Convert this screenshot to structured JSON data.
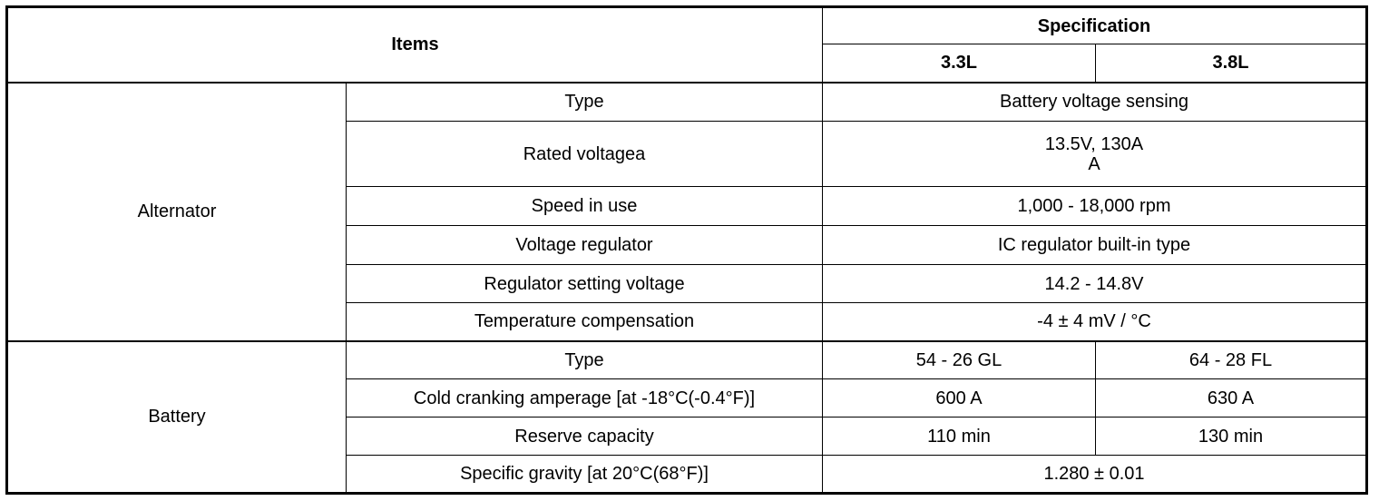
{
  "table": {
    "header": {
      "items": "Items",
      "specification": "Specification",
      "variants": [
        "3.3L",
        "3.8L"
      ]
    },
    "groups": [
      {
        "name": "Alternator",
        "rows": [
          {
            "item": "Type",
            "values": [
              [
                "Battery voltage sensing"
              ]
            ]
          },
          {
            "item": "Rated voltagea",
            "values": [
              [
                "13.5V, 130A",
                "A"
              ]
            ]
          },
          {
            "item": "Speed in use",
            "values": [
              [
                "1,000 - 18,000 rpm"
              ]
            ]
          },
          {
            "item": "Voltage regulator",
            "values": [
              [
                "IC regulator built-in type"
              ]
            ]
          },
          {
            "item": "Regulator setting voltage",
            "values": [
              [
                "14.2 - 14.8V"
              ]
            ]
          },
          {
            "item": "Temperature compensation",
            "values": [
              [
                "-4 ± 4 mV / °C"
              ]
            ]
          }
        ]
      },
      {
        "name": "Battery",
        "rows": [
          {
            "item": "Type",
            "values": [
              [
                "54 - 26 GL"
              ],
              [
                "64 - 28 FL"
              ]
            ]
          },
          {
            "item": "Cold cranking amperage [at -18°C(-0.4°F)]",
            "values": [
              [
                "600 A"
              ],
              [
                "630 A"
              ]
            ]
          },
          {
            "item": "Reserve capacity",
            "values": [
              [
                "110 min"
              ],
              [
                "130 min"
              ]
            ]
          },
          {
            "item": "Specific gravity [at 20°C(68°F)]",
            "values": [
              [
                "1.280 ± 0.01"
              ]
            ]
          }
        ]
      }
    ]
  }
}
